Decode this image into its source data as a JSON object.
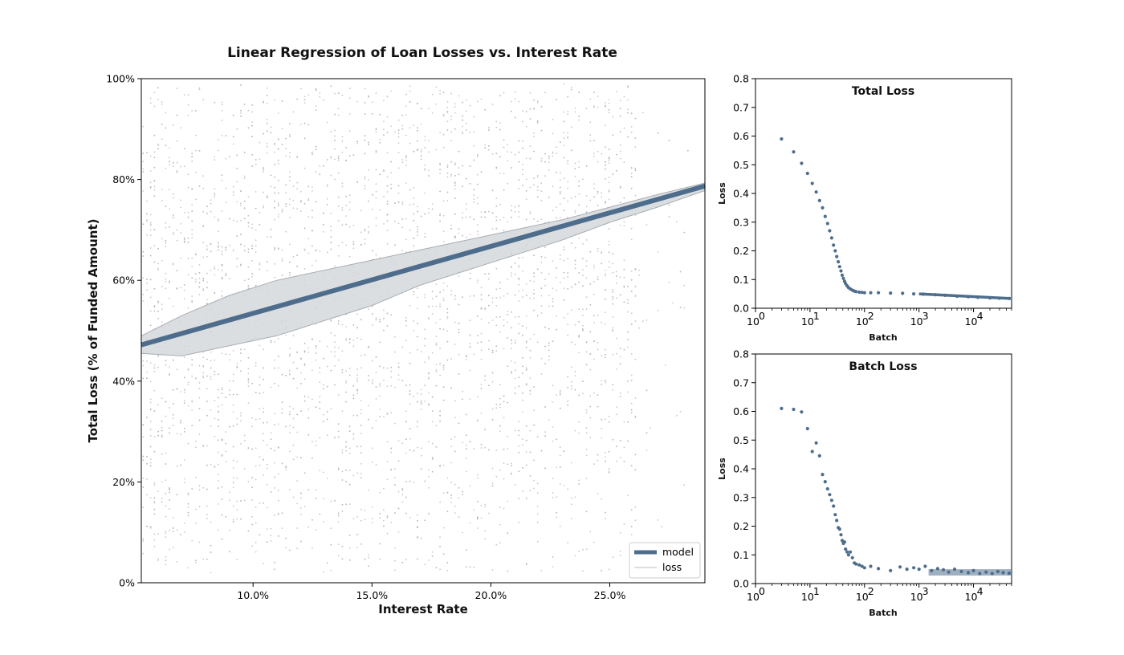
{
  "chart_data": [
    {
      "type": "scatter",
      "title": "Linear Regression of Loan Losses vs. Interest Rate",
      "xlabel": "Interest Rate",
      "ylabel": "Total Loss (% of Funded Amount)",
      "xlim": [
        0.053,
        0.29
      ],
      "ylim": [
        0,
        1
      ],
      "x_ticks": [
        0.1,
        0.15,
        0.2,
        0.25
      ],
      "x_tick_labels": [
        "10.0%",
        "15.0%",
        "20.0%",
        "25.0%"
      ],
      "y_ticks": [
        0,
        0.2,
        0.4,
        0.6,
        0.8,
        1.0
      ],
      "y_tick_labels": [
        "0%",
        "20%",
        "40%",
        "60%",
        "80%",
        "100%"
      ],
      "legend": {
        "placement": "lower-right",
        "entries": [
          "model",
          "loss"
        ]
      },
      "model_line": {
        "x": [
          0.053,
          0.29
        ],
        "y": [
          0.472,
          0.787
        ]
      },
      "confidence_band": {
        "x": [
          0.053,
          0.07,
          0.09,
          0.11,
          0.13,
          0.15,
          0.17,
          0.19,
          0.21,
          0.23,
          0.25,
          0.27,
          0.29
        ],
        "upper": [
          0.49,
          0.53,
          0.57,
          0.6,
          0.62,
          0.64,
          0.66,
          0.68,
          0.7,
          0.72,
          0.745,
          0.77,
          0.793
        ],
        "lower": [
          0.455,
          0.45,
          0.47,
          0.49,
          0.52,
          0.55,
          0.59,
          0.62,
          0.65,
          0.68,
          0.715,
          0.745,
          0.778
        ]
      },
      "colors": {
        "model": "#4e6d8c",
        "loss_points": "#b4b6b8",
        "band": "#d5d8dc"
      }
    },
    {
      "type": "scatter",
      "title": "Total Loss",
      "xlabel": "Batch",
      "ylabel": "Loss",
      "xscale": "log",
      "xlim": [
        1,
        50000
      ],
      "ylim": [
        0,
        0.8
      ],
      "y_ticks": [
        0,
        0.1,
        0.2,
        0.3,
        0.4,
        0.5,
        0.6,
        0.7,
        0.8
      ],
      "y_tick_labels": [
        "0.0",
        "0.1",
        "0.2",
        "0.3",
        "0.4",
        "0.5",
        "0.6",
        "0.7",
        "0.8"
      ],
      "x_ticks": [
        1,
        10,
        100,
        1000,
        10000
      ],
      "x_tick_exponents": [
        "0",
        "1",
        "2",
        "3",
        "4"
      ],
      "x_tick_base": "10",
      "x": [
        3,
        5,
        7,
        9,
        11,
        13,
        15,
        17,
        19,
        21,
        23,
        25,
        27,
        29,
        31,
        33,
        35,
        37,
        39,
        41,
        43,
        45,
        48,
        51,
        55,
        60,
        65,
        70,
        80,
        90,
        100,
        130,
        180,
        300,
        500,
        800,
        1200,
        2000,
        3000,
        5000,
        8000,
        12000,
        20000,
        30000,
        45000
      ],
      "y": [
        0.59,
        0.545,
        0.505,
        0.47,
        0.435,
        0.405,
        0.375,
        0.35,
        0.32,
        0.295,
        0.27,
        0.245,
        0.22,
        0.2,
        0.18,
        0.162,
        0.145,
        0.13,
        0.115,
        0.104,
        0.094,
        0.086,
        0.078,
        0.072,
        0.067,
        0.063,
        0.06,
        0.058,
        0.056,
        0.055,
        0.054,
        0.054,
        0.054,
        0.053,
        0.052,
        0.05,
        0.049,
        0.047,
        0.045,
        0.042,
        0.04,
        0.038,
        0.036,
        0.035,
        0.034
      ],
      "color": "#4e6d8c"
    },
    {
      "type": "scatter",
      "title": "Batch Loss",
      "xlabel": "Batch",
      "ylabel": "Loss",
      "xscale": "log",
      "xlim": [
        1,
        50000
      ],
      "ylim": [
        0,
        0.8
      ],
      "y_ticks": [
        0,
        0.1,
        0.2,
        0.3,
        0.4,
        0.5,
        0.6,
        0.7,
        0.8
      ],
      "y_tick_labels": [
        "0.0",
        "0.1",
        "0.2",
        "0.3",
        "0.4",
        "0.5",
        "0.6",
        "0.7",
        "0.8"
      ],
      "x_ticks": [
        1,
        10,
        100,
        1000,
        10000
      ],
      "x_tick_exponents": [
        "0",
        "1",
        "2",
        "3",
        "4"
      ],
      "x_tick_base": "10",
      "x": [
        3,
        5,
        7,
        9,
        11,
        13,
        15,
        17,
        19,
        21,
        23,
        25,
        27,
        29,
        31,
        33,
        35,
        37,
        39,
        41,
        43,
        45,
        48,
        51,
        55,
        60,
        65,
        70,
        80,
        90,
        100,
        130,
        180,
        300,
        450,
        600,
        800,
        1000,
        1300,
        1700,
        2200,
        2800,
        3500,
        4500,
        6000,
        8000,
        10000,
        13000,
        17000,
        22000,
        28000,
        35000,
        45000
      ],
      "y": [
        0.61,
        0.607,
        0.598,
        0.54,
        0.46,
        0.49,
        0.445,
        0.38,
        0.355,
        0.33,
        0.31,
        0.29,
        0.27,
        0.24,
        0.22,
        0.195,
        0.19,
        0.17,
        0.15,
        0.14,
        0.145,
        0.12,
        0.11,
        0.1,
        0.11,
        0.09,
        0.072,
        0.068,
        0.065,
        0.06,
        0.055,
        0.06,
        0.052,
        0.045,
        0.058,
        0.05,
        0.055,
        0.05,
        0.06,
        0.045,
        0.052,
        0.048,
        0.04,
        0.05,
        0.042,
        0.038,
        0.045,
        0.035,
        0.04,
        0.035,
        0.042,
        0.038,
        0.036
      ],
      "color": "#4e6d8c"
    }
  ]
}
